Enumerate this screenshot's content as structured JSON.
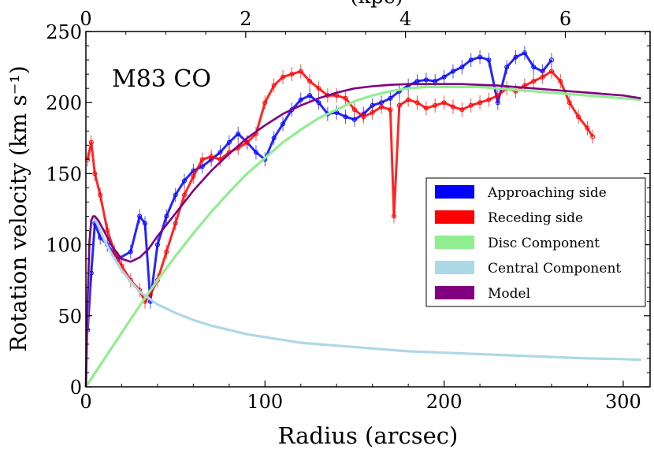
{
  "chart_data": {
    "type": "line",
    "annotation": "M83 CO",
    "xlabel": "Radius (arcsec)",
    "ylabel": "Rotation velocity (km s⁻¹)",
    "top_axis_label": "(kpc)",
    "xlim": [
      0,
      315
    ],
    "ylim": [
      0,
      250
    ],
    "top_xlim_kpc": [
      0,
      7.06
    ],
    "x_ticks": [
      0,
      100,
      200,
      300
    ],
    "y_ticks": [
      0,
      50,
      100,
      150,
      200,
      250
    ],
    "top_ticks_kpc": [
      0,
      2,
      4,
      6
    ],
    "legend_position": "center-right",
    "legend": [
      {
        "label": "Approaching side",
        "color": "#0000ff"
      },
      {
        "label": "Receding side",
        "color": "#ff0000"
      },
      {
        "label": "Disc Component",
        "color": "#90ee90"
      },
      {
        "label": "Central Component",
        "color": "#add8e6"
      },
      {
        "label": "Model",
        "color": "#800080"
      }
    ],
    "series": [
      {
        "name": "Approaching side",
        "color": "#0000ff",
        "points": [
          [
            1,
            40
          ],
          [
            3,
            80
          ],
          [
            5,
            115
          ],
          [
            8,
            105
          ],
          [
            12,
            100
          ],
          [
            18,
            90
          ],
          [
            25,
            95
          ],
          [
            30,
            120
          ],
          [
            33,
            115
          ],
          [
            36,
            60
          ],
          [
            40,
            100
          ],
          [
            45,
            120
          ],
          [
            50,
            135
          ],
          [
            55,
            145
          ],
          [
            60,
            152
          ],
          [
            65,
            155
          ],
          [
            70,
            160
          ],
          [
            75,
            165
          ],
          [
            80,
            172
          ],
          [
            85,
            178
          ],
          [
            90,
            172
          ],
          [
            95,
            165
          ],
          [
            100,
            160
          ],
          [
            105,
            175
          ],
          [
            110,
            185
          ],
          [
            115,
            195
          ],
          [
            120,
            202
          ],
          [
            125,
            205
          ],
          [
            130,
            200
          ],
          [
            135,
            192
          ],
          [
            140,
            193
          ],
          [
            145,
            190
          ],
          [
            150,
            188
          ],
          [
            155,
            192
          ],
          [
            160,
            198
          ],
          [
            165,
            200
          ],
          [
            170,
            203
          ],
          [
            175,
            208
          ],
          [
            180,
            212
          ],
          [
            185,
            215
          ],
          [
            190,
            216
          ],
          [
            195,
            215
          ],
          [
            200,
            218
          ],
          [
            205,
            222
          ],
          [
            210,
            225
          ],
          [
            215,
            230
          ],
          [
            220,
            232
          ],
          [
            225,
            230
          ],
          [
            230,
            200
          ],
          [
            235,
            225
          ],
          [
            240,
            232
          ],
          [
            245,
            235
          ],
          [
            250,
            225
          ],
          [
            255,
            222
          ],
          [
            260,
            230
          ]
        ]
      },
      {
        "name": "Receding side",
        "color": "#ff0000",
        "points": [
          [
            1,
            160
          ],
          [
            3,
            172
          ],
          [
            5,
            150
          ],
          [
            8,
            135
          ],
          [
            12,
            110
          ],
          [
            16,
            95
          ],
          [
            20,
            85
          ],
          [
            25,
            75
          ],
          [
            30,
            68
          ],
          [
            33,
            60
          ],
          [
            36,
            65
          ],
          [
            40,
            75
          ],
          [
            45,
            95
          ],
          [
            50,
            115
          ],
          [
            55,
            135
          ],
          [
            60,
            148
          ],
          [
            65,
            160
          ],
          [
            70,
            162
          ],
          [
            75,
            160
          ],
          [
            80,
            165
          ],
          [
            85,
            168
          ],
          [
            90,
            172
          ],
          [
            95,
            178
          ],
          [
            100,
            200
          ],
          [
            105,
            212
          ],
          [
            110,
            218
          ],
          [
            115,
            220
          ],
          [
            120,
            222
          ],
          [
            125,
            215
          ],
          [
            130,
            210
          ],
          [
            135,
            205
          ],
          [
            140,
            205
          ],
          [
            145,
            203
          ],
          [
            150,
            195
          ],
          [
            155,
            190
          ],
          [
            160,
            193
          ],
          [
            165,
            197
          ],
          [
            170,
            195
          ],
          [
            172,
            120
          ],
          [
            175,
            198
          ],
          [
            180,
            202
          ],
          [
            185,
            200
          ],
          [
            190,
            196
          ],
          [
            195,
            198
          ],
          [
            200,
            200
          ],
          [
            205,
            197
          ],
          [
            210,
            195
          ],
          [
            215,
            198
          ],
          [
            220,
            200
          ],
          [
            225,
            202
          ],
          [
            230,
            205
          ],
          [
            235,
            210
          ],
          [
            240,
            208
          ],
          [
            245,
            212
          ],
          [
            250,
            215
          ],
          [
            255,
            218
          ],
          [
            260,
            222
          ],
          [
            265,
            215
          ],
          [
            270,
            200
          ],
          [
            275,
            190
          ],
          [
            280,
            182
          ],
          [
            283,
            176
          ]
        ]
      },
      {
        "name": "Disc Component",
        "color": "#90ee90",
        "points": [
          [
            0,
            0
          ],
          [
            10,
            19
          ],
          [
            20,
            38
          ],
          [
            30,
            57
          ],
          [
            40,
            75
          ],
          [
            50,
            92
          ],
          [
            60,
            108
          ],
          [
            70,
            123
          ],
          [
            80,
            137
          ],
          [
            90,
            150
          ],
          [
            100,
            161
          ],
          [
            110,
            172
          ],
          [
            120,
            181
          ],
          [
            130,
            189
          ],
          [
            140,
            195
          ],
          [
            150,
            201
          ],
          [
            160,
            205
          ],
          [
            170,
            208
          ],
          [
            180,
            210
          ],
          [
            190,
            211
          ],
          [
            200,
            211
          ],
          [
            210,
            211
          ],
          [
            220,
            211
          ],
          [
            230,
            210
          ],
          [
            240,
            209
          ],
          [
            250,
            208
          ],
          [
            260,
            207
          ],
          [
            270,
            206
          ],
          [
            280,
            205
          ],
          [
            290,
            204
          ],
          [
            300,
            203
          ],
          [
            310,
            202
          ]
        ]
      },
      {
        "name": "Central Component",
        "color": "#add8e6",
        "points": [
          [
            0,
            0
          ],
          [
            1,
            60
          ],
          [
            2,
            100
          ],
          [
            3,
            116
          ],
          [
            4,
            119
          ],
          [
            5,
            118
          ],
          [
            7,
            113
          ],
          [
            10,
            104
          ],
          [
            15,
            92
          ],
          [
            20,
            82
          ],
          [
            25,
            74
          ],
          [
            30,
            67
          ],
          [
            40,
            58
          ],
          [
            50,
            52
          ],
          [
            60,
            47
          ],
          [
            70,
            43
          ],
          [
            80,
            40
          ],
          [
            90,
            37
          ],
          [
            100,
            35
          ],
          [
            120,
            31
          ],
          [
            140,
            29
          ],
          [
            160,
            27
          ],
          [
            180,
            25
          ],
          [
            200,
            24
          ],
          [
            220,
            23
          ],
          [
            240,
            22
          ],
          [
            260,
            21
          ],
          [
            280,
            20
          ],
          [
            300,
            19.5
          ],
          [
            310,
            19
          ]
        ]
      },
      {
        "name": "Model",
        "color": "#800080",
        "points": [
          [
            0,
            0
          ],
          [
            1,
            62
          ],
          [
            2,
            102
          ],
          [
            3,
            117
          ],
          [
            4,
            120
          ],
          [
            5,
            120
          ],
          [
            7,
            117
          ],
          [
            10,
            110
          ],
          [
            15,
            98
          ],
          [
            20,
            90
          ],
          [
            25,
            88
          ],
          [
            30,
            91
          ],
          [
            35,
            97
          ],
          [
            40,
            106
          ],
          [
            50,
            122
          ],
          [
            60,
            138
          ],
          [
            70,
            152
          ],
          [
            80,
            164
          ],
          [
            90,
            175
          ],
          [
            100,
            184
          ],
          [
            110,
            192
          ],
          [
            120,
            198
          ],
          [
            130,
            203
          ],
          [
            140,
            207
          ],
          [
            150,
            210
          ],
          [
            160,
            211.5
          ],
          [
            170,
            212.5
          ],
          [
            180,
            213
          ],
          [
            190,
            213
          ],
          [
            200,
            213
          ],
          [
            210,
            213
          ],
          [
            220,
            212.5
          ],
          [
            230,
            212
          ],
          [
            240,
            211
          ],
          [
            250,
            210
          ],
          [
            260,
            209
          ],
          [
            270,
            208
          ],
          [
            280,
            207
          ],
          [
            290,
            206
          ],
          [
            300,
            205
          ],
          [
            310,
            203
          ]
        ]
      }
    ]
  }
}
